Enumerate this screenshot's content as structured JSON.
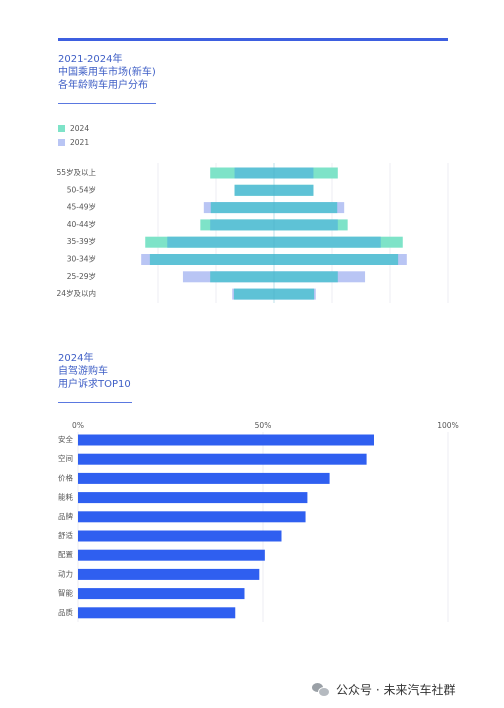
{
  "section1": {
    "title_lines": [
      "2021-2024年",
      "中国乘用车市场(新车)",
      "各年龄购车用户分布"
    ]
  },
  "section2": {
    "title_lines": [
      "2024年",
      "自驾游购车",
      "用户诉求TOP10"
    ]
  },
  "watermark": {
    "text": "公众号 · 未来汽车社群"
  },
  "colors": {
    "accent": "#3d5fe0",
    "c2024": "#7ee3c8",
    "c2021": "#b9c5f4",
    "overlap": "#5ec2d6",
    "bar": "#2f5ff0"
  },
  "chart_data": [
    {
      "type": "bar",
      "orientation": "horizontal-diverging",
      "legend": {
        "position": "top-left",
        "entries": [
          "2024",
          "2021"
        ]
      },
      "categories": [
        "55岁及以上",
        "50-54岁",
        "45-49岁",
        "40-44岁",
        "35-39岁",
        "30-34岁",
        "25-29岁",
        "24岁及以内"
      ],
      "series": [
        {
          "name": "2024",
          "values": [
            11.0,
            6.8,
            10.9,
            12.7,
            22.2,
            21.4,
            11.0,
            6.9
          ]
        },
        {
          "name": "2021",
          "values": [
            6.8,
            6.8,
            12.1,
            11.0,
            18.4,
            22.9,
            15.7,
            7.2
          ]
        }
      ],
      "grid": true
    },
    {
      "type": "bar",
      "orientation": "horizontal",
      "categories": [
        "安全",
        "空间",
        "价格",
        "能耗",
        "品牌",
        "舒适",
        "配置",
        "动力",
        "智能",
        "品质"
      ],
      "values": [
        80,
        78,
        68,
        62,
        61.5,
        55,
        50.5,
        49,
        45,
        42.5
      ],
      "xlim": [
        0,
        100
      ],
      "tick_labels": [
        "0%",
        "50%",
        "100%"
      ],
      "grid": true
    }
  ]
}
